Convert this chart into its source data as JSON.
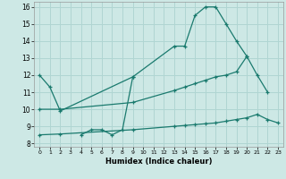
{
  "xlabel": "Humidex (Indice chaleur)",
  "xlim": [
    -0.5,
    23.5
  ],
  "ylim": [
    7.8,
    16.3
  ],
  "yticks": [
    8,
    9,
    10,
    11,
    12,
    13,
    14,
    15,
    16
  ],
  "xticks": [
    0,
    1,
    2,
    3,
    4,
    5,
    6,
    7,
    8,
    9,
    10,
    11,
    12,
    13,
    14,
    15,
    16,
    17,
    18,
    19,
    20,
    21,
    22,
    23
  ],
  "bg_color": "#cde8e5",
  "grid_color": "#b0d5d2",
  "line_color": "#1a7a6e",
  "line1_x": [
    0,
    1,
    2,
    9,
    13,
    14,
    15,
    16,
    17,
    18,
    19,
    20
  ],
  "line1_y": [
    12.0,
    11.3,
    9.9,
    11.9,
    13.7,
    13.7,
    15.5,
    16.0,
    16.0,
    15.0,
    14.0,
    13.1
  ],
  "line2_x": [
    4,
    5,
    6,
    7,
    8,
    9
  ],
  "line2_y": [
    8.5,
    8.8,
    8.8,
    8.5,
    8.8,
    11.9
  ],
  "line3_x": [
    0,
    2,
    9,
    13,
    14,
    15,
    16,
    17,
    18,
    19,
    20,
    21,
    22
  ],
  "line3_y": [
    10.0,
    10.0,
    10.4,
    11.1,
    11.3,
    11.5,
    11.7,
    11.9,
    12.0,
    12.2,
    13.1,
    12.0,
    11.0
  ],
  "line4_x": [
    0,
    2,
    9,
    13,
    14,
    15,
    16,
    17,
    18,
    19,
    20,
    21,
    22,
    23
  ],
  "line4_y": [
    8.5,
    8.55,
    8.8,
    9.0,
    9.05,
    9.1,
    9.15,
    9.2,
    9.3,
    9.4,
    9.5,
    9.7,
    9.4,
    9.2
  ]
}
